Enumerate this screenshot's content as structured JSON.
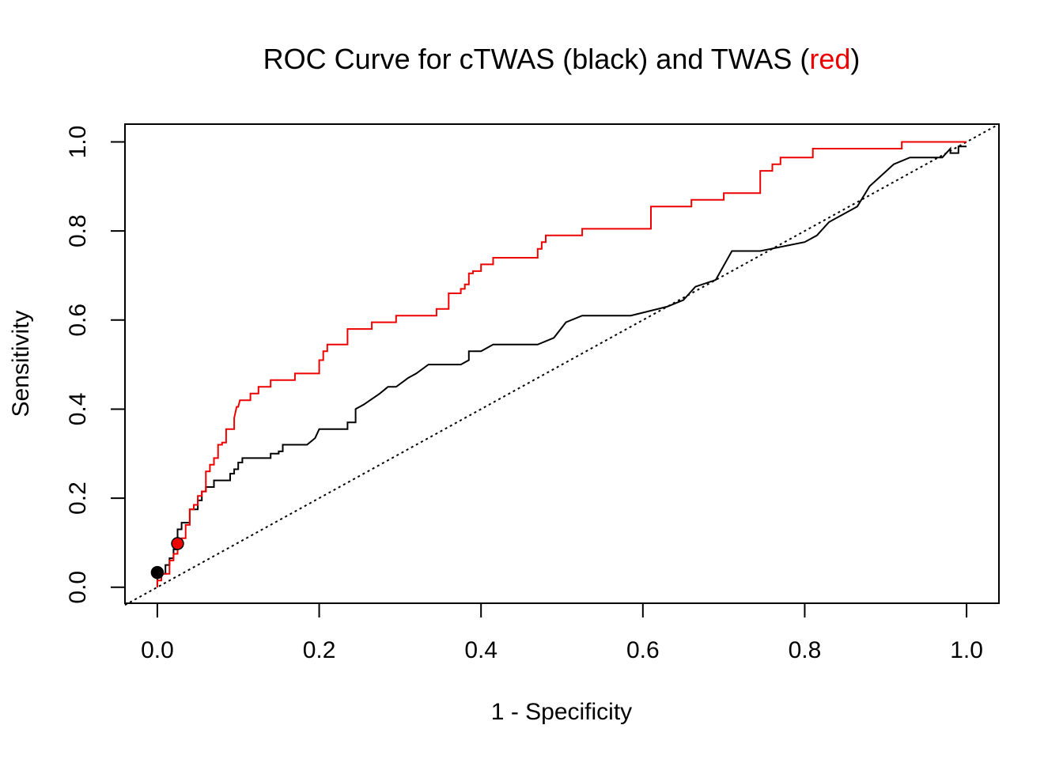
{
  "chart_data": {
    "type": "line",
    "title_parts": {
      "prefix": "ROC Curve for cTWAS (black) and TWAS (",
      "highlight": "red",
      "suffix": ")"
    },
    "xlabel": "1 - Specificity",
    "ylabel": "Sensitivity",
    "xlim": [
      -0.04,
      1.04
    ],
    "ylim": [
      -0.036,
      1.04
    ],
    "x_ticks": [
      "0.0",
      "0.2",
      "0.4",
      "0.6",
      "0.8",
      "1.0"
    ],
    "y_ticks": [
      "0.0",
      "0.2",
      "0.4",
      "0.6",
      "0.8",
      "1.0"
    ],
    "grid": false,
    "legend": "none",
    "colors": {
      "ctwas": "#000000",
      "twas": "#ee0000",
      "reference": "#000000"
    },
    "reference_line": {
      "style": "dotted",
      "x": [
        -0.04,
        1.04
      ],
      "y": [
        -0.04,
        1.04
      ]
    },
    "series": [
      {
        "color": "#000000",
        "x": [
          0,
          0,
          0.01,
          0.01,
          0.015,
          0.015,
          0.02,
          0.02,
          0.025,
          0.025,
          0.03,
          0.03,
          0.04,
          0.04,
          0.05,
          0.05,
          0.055,
          0.055,
          0.06,
          0.06,
          0.07,
          0.07,
          0.09,
          0.09,
          0.095,
          0.095,
          0.1,
          0.1,
          0.105,
          0.105,
          0.14,
          0.14,
          0.15,
          0.15,
          0.155,
          0.155,
          0.185,
          0.195,
          0.2,
          0.22,
          0.235,
          0.235,
          0.245,
          0.245,
          0.255,
          0.275,
          0.285,
          0.295,
          0.31,
          0.32,
          0.335,
          0.375,
          0.385,
          0.385,
          0.4,
          0.415,
          0.47,
          0.49,
          0.505,
          0.525,
          0.585,
          0.63,
          0.65,
          0.665,
          0.69,
          0.71,
          0.745,
          0.8,
          0.815,
          0.83,
          0.865,
          0.88,
          0.91,
          0.93,
          0.97,
          0.98,
          0.98,
          0.99,
          0.99,
          1.0
        ],
        "y": [
          0,
          0.03,
          0.03,
          0.05,
          0.05,
          0.065,
          0.065,
          0.085,
          0.085,
          0.13,
          0.13,
          0.145,
          0.145,
          0.175,
          0.175,
          0.195,
          0.195,
          0.215,
          0.215,
          0.225,
          0.225,
          0.24,
          0.24,
          0.255,
          0.255,
          0.265,
          0.265,
          0.28,
          0.28,
          0.29,
          0.29,
          0.3,
          0.3,
          0.305,
          0.305,
          0.32,
          0.32,
          0.335,
          0.355,
          0.355,
          0.355,
          0.37,
          0.37,
          0.4,
          0.41,
          0.435,
          0.45,
          0.45,
          0.47,
          0.48,
          0.5,
          0.5,
          0.51,
          0.53,
          0.53,
          0.545,
          0.545,
          0.56,
          0.595,
          0.61,
          0.61,
          0.63,
          0.645,
          0.675,
          0.69,
          0.755,
          0.755,
          0.775,
          0.79,
          0.82,
          0.855,
          0.9,
          0.95,
          0.965,
          0.965,
          0.985,
          0.975,
          0.975,
          0.99,
          0.99
        ]
      },
      {
        "color": "#ee0000",
        "x": [
          0,
          0,
          0.005,
          0.005,
          0.015,
          0.015,
          0.02,
          0.02,
          0.025,
          0.025,
          0.03,
          0.03,
          0.035,
          0.035,
          0.04,
          0.04,
          0.045,
          0.045,
          0.05,
          0.05,
          0.055,
          0.055,
          0.06,
          0.06,
          0.065,
          0.065,
          0.07,
          0.07,
          0.075,
          0.075,
          0.08,
          0.08,
          0.085,
          0.085,
          0.095,
          0.095,
          0.098,
          0.1,
          0.102,
          0.102,
          0.115,
          0.115,
          0.125,
          0.125,
          0.14,
          0.14,
          0.17,
          0.17,
          0.2,
          0.2,
          0.205,
          0.205,
          0.21,
          0.21,
          0.215,
          0.215,
          0.235,
          0.235,
          0.265,
          0.265,
          0.295,
          0.295,
          0.345,
          0.345,
          0.36,
          0.36,
          0.375,
          0.375,
          0.38,
          0.38,
          0.385,
          0.385,
          0.39,
          0.39,
          0.4,
          0.4,
          0.415,
          0.415,
          0.47,
          0.47,
          0.475,
          0.475,
          0.48,
          0.48,
          0.49,
          0.49,
          0.525,
          0.525,
          0.61,
          0.61,
          0.66,
          0.66,
          0.7,
          0.7,
          0.745,
          0.745,
          0.76,
          0.76,
          0.77,
          0.77,
          0.785,
          0.785,
          0.81,
          0.81,
          0.92,
          0.92,
          1.0
        ],
        "y": [
          0,
          0.015,
          0.015,
          0.03,
          0.03,
          0.06,
          0.06,
          0.075,
          0.075,
          0.09,
          0.09,
          0.11,
          0.11,
          0.14,
          0.14,
          0.175,
          0.175,
          0.185,
          0.185,
          0.205,
          0.205,
          0.215,
          0.215,
          0.26,
          0.26,
          0.275,
          0.275,
          0.29,
          0.29,
          0.32,
          0.32,
          0.325,
          0.325,
          0.355,
          0.355,
          0.38,
          0.405,
          0.405,
          0.42,
          0.42,
          0.42,
          0.435,
          0.435,
          0.45,
          0.45,
          0.465,
          0.465,
          0.48,
          0.48,
          0.51,
          0.51,
          0.53,
          0.53,
          0.545,
          0.545,
          0.545,
          0.545,
          0.58,
          0.58,
          0.595,
          0.595,
          0.61,
          0.61,
          0.625,
          0.625,
          0.66,
          0.66,
          0.67,
          0.67,
          0.68,
          0.68,
          0.705,
          0.705,
          0.71,
          0.71,
          0.725,
          0.725,
          0.74,
          0.74,
          0.76,
          0.76,
          0.775,
          0.775,
          0.79,
          0.79,
          0.79,
          0.79,
          0.805,
          0.805,
          0.855,
          0.855,
          0.87,
          0.87,
          0.885,
          0.885,
          0.935,
          0.935,
          0.95,
          0.95,
          0.965,
          0.965,
          0.965,
          0.965,
          0.985,
          0.985,
          1.0,
          1.0
        ]
      }
    ],
    "points": [
      {
        "x": 0.0,
        "y": 0.033,
        "color": "#000000"
      },
      {
        "x": 0.025,
        "y": 0.098,
        "color": "#ee0000"
      }
    ]
  }
}
